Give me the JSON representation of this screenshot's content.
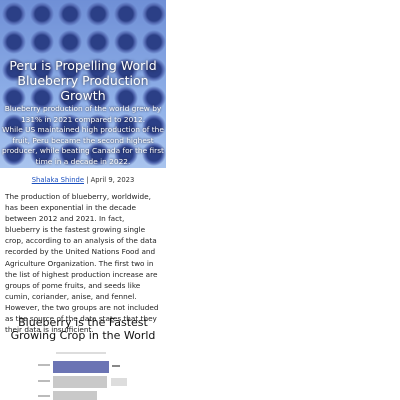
{
  "hero": {
    "title": "Peru is Propelling World Blueberry Production Growth",
    "subtitle": [
      "Blueberry production of the world grew by 131% in 2021 compared to 2012.",
      "While US maintained high production of the fruit, Peru became the second highest producer, while beating Canada for the first time in a decade in 2022."
    ]
  },
  "byline": {
    "author": "Shalaka Shinde",
    "separator": "|",
    "date": "April 9, 2023"
  },
  "article": {
    "paragraph": "The production of blueberry, worldwide, has been exponential in the decade between 2012 and 2021. In fact, blueberry is the fastest growing single crop, according to an analysis of the data recorded by the United Nations Food and Agriculture Organization. The first two in the list of highest production increase are groups of pome fruits, and seeds like cumin, coriander, anise, and fennel. However, the two groups are not included as the source of the data states that they their data is insufficient.",
    "heading": "Blueberry is the Fastest Growing Crop in the World"
  }
}
